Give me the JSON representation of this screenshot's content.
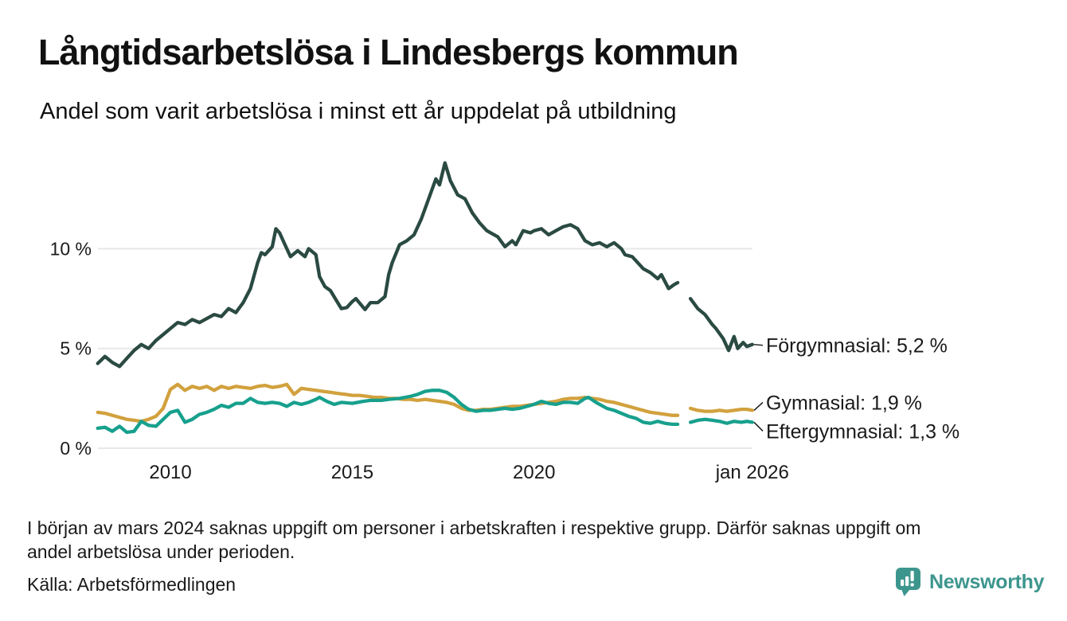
{
  "chart_data": {
    "type": "line",
    "title": "Långtidsarbetslösa i Lindesbergs kommun",
    "subtitle": "Andel som varit arbetslösa i minst ett år uppdelat på utbildning",
    "unit": "%",
    "x_range": [
      2008,
      2026.05
    ],
    "ylim": [
      0,
      14.5
    ],
    "grid": "horizontal",
    "legend_position": "end-of-line-labels-right",
    "y_ticks": [
      {
        "value": 0,
        "label": "0 %"
      },
      {
        "value": 5,
        "label": "5 %"
      },
      {
        "value": 10,
        "label": "10 %"
      }
    ],
    "x_ticks": [
      {
        "year": 2010,
        "label": "2010"
      },
      {
        "year": 2015,
        "label": "2015"
      },
      {
        "year": 2020,
        "label": "2020"
      },
      {
        "year": 2026,
        "label": "jan 2026"
      }
    ],
    "colors": {
      "forgymnasial": "#2a4a42",
      "gymnasial": "#d2a13d",
      "eftergymnasial": "#17a08d",
      "grid": "#e8e8e8",
      "text": "#1a1a1a"
    },
    "series": [
      {
        "name": "Förgymnasial",
        "color": "#2a4a42",
        "end_label": "Förgymnasial: 5,2 %",
        "end_value": "5,2 %",
        "points": [
          [
            2008.0,
            4.25
          ],
          [
            2008.2,
            4.6
          ],
          [
            2008.4,
            4.3
          ],
          [
            2008.6,
            4.1
          ],
          [
            2008.8,
            4.5
          ],
          [
            2009.0,
            4.9
          ],
          [
            2009.2,
            5.2
          ],
          [
            2009.4,
            5.0
          ],
          [
            2009.6,
            5.4
          ],
          [
            2009.8,
            5.7
          ],
          [
            2010.0,
            6.0
          ],
          [
            2010.2,
            6.3
          ],
          [
            2010.4,
            6.2
          ],
          [
            2010.6,
            6.45
          ],
          [
            2010.8,
            6.3
          ],
          [
            2011.0,
            6.5
          ],
          [
            2011.2,
            6.7
          ],
          [
            2011.4,
            6.6
          ],
          [
            2011.6,
            7.0
          ],
          [
            2011.8,
            6.8
          ],
          [
            2012.0,
            7.3
          ],
          [
            2012.2,
            8.0
          ],
          [
            2012.4,
            9.3
          ],
          [
            2012.5,
            9.8
          ],
          [
            2012.6,
            9.7
          ],
          [
            2012.8,
            10.1
          ],
          [
            2012.9,
            11.0
          ],
          [
            2013.0,
            10.8
          ],
          [
            2013.1,
            10.4
          ],
          [
            2013.3,
            9.6
          ],
          [
            2013.5,
            9.9
          ],
          [
            2013.7,
            9.6
          ],
          [
            2013.8,
            10.0
          ],
          [
            2014.0,
            9.7
          ],
          [
            2014.1,
            8.6
          ],
          [
            2014.25,
            8.1
          ],
          [
            2014.4,
            7.9
          ],
          [
            2014.6,
            7.3
          ],
          [
            2014.7,
            7.0
          ],
          [
            2014.85,
            7.05
          ],
          [
            2015.0,
            7.35
          ],
          [
            2015.1,
            7.5
          ],
          [
            2015.35,
            6.95
          ],
          [
            2015.5,
            7.3
          ],
          [
            2015.7,
            7.3
          ],
          [
            2015.9,
            7.6
          ],
          [
            2016.0,
            8.7
          ],
          [
            2016.1,
            9.3
          ],
          [
            2016.3,
            10.2
          ],
          [
            2016.5,
            10.4
          ],
          [
            2016.7,
            10.7
          ],
          [
            2016.9,
            11.5
          ],
          [
            2017.1,
            12.5
          ],
          [
            2017.3,
            13.5
          ],
          [
            2017.4,
            13.2
          ],
          [
            2017.55,
            14.3
          ],
          [
            2017.7,
            13.4
          ],
          [
            2017.9,
            12.7
          ],
          [
            2018.1,
            12.5
          ],
          [
            2018.3,
            11.8
          ],
          [
            2018.5,
            11.3
          ],
          [
            2018.7,
            10.9
          ],
          [
            2018.9,
            10.7
          ],
          [
            2019.0,
            10.6
          ],
          [
            2019.2,
            10.1
          ],
          [
            2019.4,
            10.4
          ],
          [
            2019.5,
            10.2
          ],
          [
            2019.7,
            10.9
          ],
          [
            2019.9,
            10.8
          ],
          [
            2020.0,
            10.9
          ],
          [
            2020.2,
            11.0
          ],
          [
            2020.4,
            10.7
          ],
          [
            2020.6,
            10.9
          ],
          [
            2020.8,
            11.1
          ],
          [
            2021.0,
            11.2
          ],
          [
            2021.2,
            11.0
          ],
          [
            2021.4,
            10.4
          ],
          [
            2021.6,
            10.2
          ],
          [
            2021.8,
            10.3
          ],
          [
            2022.0,
            10.1
          ],
          [
            2022.2,
            10.3
          ],
          [
            2022.4,
            10.0
          ],
          [
            2022.5,
            9.7
          ],
          [
            2022.7,
            9.6
          ],
          [
            2022.9,
            9.2
          ],
          [
            2023.0,
            9.0
          ],
          [
            2023.2,
            8.8
          ],
          [
            2023.4,
            8.5
          ],
          [
            2023.5,
            8.7
          ],
          [
            2023.7,
            8.0
          ],
          [
            2023.85,
            8.2
          ],
          [
            2023.95,
            8.3
          ],
          [
            2024.1,
            null
          ],
          [
            2024.3,
            7.5
          ],
          [
            2024.5,
            7.0
          ],
          [
            2024.7,
            6.7
          ],
          [
            2024.9,
            6.2
          ],
          [
            2025.0,
            6.0
          ],
          [
            2025.2,
            5.5
          ],
          [
            2025.35,
            4.9
          ],
          [
            2025.5,
            5.6
          ],
          [
            2025.6,
            5.0
          ],
          [
            2025.75,
            5.3
          ],
          [
            2025.85,
            5.1
          ],
          [
            2026.0,
            5.2
          ]
        ]
      },
      {
        "name": "Gymnasial",
        "color": "#d2a13d",
        "end_label": "Gymnasial: 1,9 %",
        "end_value": "1,9 %",
        "points": [
          [
            2008.0,
            1.8
          ],
          [
            2008.2,
            1.75
          ],
          [
            2008.4,
            1.65
          ],
          [
            2008.6,
            1.55
          ],
          [
            2008.8,
            1.45
          ],
          [
            2009.0,
            1.4
          ],
          [
            2009.2,
            1.35
          ],
          [
            2009.4,
            1.45
          ],
          [
            2009.6,
            1.6
          ],
          [
            2009.8,
            2.0
          ],
          [
            2010.0,
            2.95
          ],
          [
            2010.2,
            3.2
          ],
          [
            2010.4,
            2.9
          ],
          [
            2010.6,
            3.1
          ],
          [
            2010.8,
            3.0
          ],
          [
            2011.0,
            3.1
          ],
          [
            2011.2,
            2.9
          ],
          [
            2011.4,
            3.1
          ],
          [
            2011.6,
            3.0
          ],
          [
            2011.8,
            3.1
          ],
          [
            2012.0,
            3.05
          ],
          [
            2012.2,
            3.0
          ],
          [
            2012.4,
            3.1
          ],
          [
            2012.6,
            3.15
          ],
          [
            2012.8,
            3.05
          ],
          [
            2013.0,
            3.1
          ],
          [
            2013.2,
            3.2
          ],
          [
            2013.4,
            2.7
          ],
          [
            2013.6,
            3.0
          ],
          [
            2013.8,
            2.95
          ],
          [
            2014.0,
            2.9
          ],
          [
            2014.2,
            2.85
          ],
          [
            2014.4,
            2.8
          ],
          [
            2014.6,
            2.75
          ],
          [
            2014.8,
            2.7
          ],
          [
            2015.0,
            2.65
          ],
          [
            2015.2,
            2.65
          ],
          [
            2015.4,
            2.6
          ],
          [
            2015.6,
            2.55
          ],
          [
            2015.8,
            2.55
          ],
          [
            2016.0,
            2.5
          ],
          [
            2016.2,
            2.5
          ],
          [
            2016.4,
            2.45
          ],
          [
            2016.6,
            2.45
          ],
          [
            2016.8,
            2.4
          ],
          [
            2017.0,
            2.45
          ],
          [
            2017.2,
            2.4
          ],
          [
            2017.4,
            2.35
          ],
          [
            2017.6,
            2.3
          ],
          [
            2017.8,
            2.2
          ],
          [
            2018.0,
            2.0
          ],
          [
            2018.2,
            1.9
          ],
          [
            2018.4,
            1.9
          ],
          [
            2018.6,
            1.95
          ],
          [
            2018.8,
            1.95
          ],
          [
            2019.0,
            2.0
          ],
          [
            2019.2,
            2.05
          ],
          [
            2019.4,
            2.1
          ],
          [
            2019.6,
            2.1
          ],
          [
            2019.8,
            2.15
          ],
          [
            2020.0,
            2.2
          ],
          [
            2020.2,
            2.25
          ],
          [
            2020.4,
            2.3
          ],
          [
            2020.6,
            2.35
          ],
          [
            2020.8,
            2.45
          ],
          [
            2021.0,
            2.5
          ],
          [
            2021.2,
            2.5
          ],
          [
            2021.4,
            2.55
          ],
          [
            2021.6,
            2.5
          ],
          [
            2021.8,
            2.45
          ],
          [
            2022.0,
            2.35
          ],
          [
            2022.2,
            2.3
          ],
          [
            2022.4,
            2.2
          ],
          [
            2022.6,
            2.1
          ],
          [
            2022.8,
            2.0
          ],
          [
            2023.0,
            1.9
          ],
          [
            2023.2,
            1.8
          ],
          [
            2023.4,
            1.75
          ],
          [
            2023.6,
            1.7
          ],
          [
            2023.8,
            1.65
          ],
          [
            2023.95,
            1.65
          ],
          [
            2024.1,
            null
          ],
          [
            2024.3,
            2.0
          ],
          [
            2024.5,
            1.9
          ],
          [
            2024.7,
            1.85
          ],
          [
            2024.9,
            1.85
          ],
          [
            2025.1,
            1.9
          ],
          [
            2025.3,
            1.85
          ],
          [
            2025.5,
            1.9
          ],
          [
            2025.7,
            1.95
          ],
          [
            2025.85,
            1.95
          ],
          [
            2026.0,
            1.9
          ]
        ]
      },
      {
        "name": "Eftergymnasial",
        "color": "#17a08d",
        "end_label": "Eftergymnasial: 1,3 %",
        "end_value": "1,3 %",
        "points": [
          [
            2008.0,
            1.0
          ],
          [
            2008.2,
            1.05
          ],
          [
            2008.4,
            0.85
          ],
          [
            2008.6,
            1.1
          ],
          [
            2008.8,
            0.8
          ],
          [
            2009.0,
            0.85
          ],
          [
            2009.2,
            1.35
          ],
          [
            2009.4,
            1.15
          ],
          [
            2009.6,
            1.1
          ],
          [
            2009.8,
            1.45
          ],
          [
            2010.0,
            1.8
          ],
          [
            2010.2,
            1.9
          ],
          [
            2010.4,
            1.3
          ],
          [
            2010.6,
            1.45
          ],
          [
            2010.8,
            1.7
          ],
          [
            2011.0,
            1.8
          ],
          [
            2011.2,
            1.95
          ],
          [
            2011.4,
            2.15
          ],
          [
            2011.6,
            2.05
          ],
          [
            2011.8,
            2.25
          ],
          [
            2012.0,
            2.25
          ],
          [
            2012.2,
            2.5
          ],
          [
            2012.4,
            2.3
          ],
          [
            2012.6,
            2.25
          ],
          [
            2012.8,
            2.3
          ],
          [
            2013.0,
            2.25
          ],
          [
            2013.2,
            2.1
          ],
          [
            2013.4,
            2.3
          ],
          [
            2013.6,
            2.2
          ],
          [
            2013.8,
            2.3
          ],
          [
            2014.0,
            2.45
          ],
          [
            2014.1,
            2.55
          ],
          [
            2014.3,
            2.35
          ],
          [
            2014.5,
            2.2
          ],
          [
            2014.7,
            2.3
          ],
          [
            2015.0,
            2.25
          ],
          [
            2015.3,
            2.35
          ],
          [
            2015.5,
            2.4
          ],
          [
            2015.8,
            2.4
          ],
          [
            2016.0,
            2.45
          ],
          [
            2016.3,
            2.5
          ],
          [
            2016.6,
            2.6
          ],
          [
            2016.8,
            2.7
          ],
          [
            2017.0,
            2.85
          ],
          [
            2017.2,
            2.9
          ],
          [
            2017.4,
            2.9
          ],
          [
            2017.6,
            2.8
          ],
          [
            2017.8,
            2.55
          ],
          [
            2018.0,
            2.2
          ],
          [
            2018.2,
            1.95
          ],
          [
            2018.4,
            1.85
          ],
          [
            2018.6,
            1.9
          ],
          [
            2018.8,
            1.9
          ],
          [
            2019.0,
            1.95
          ],
          [
            2019.2,
            2.0
          ],
          [
            2019.4,
            1.95
          ],
          [
            2019.6,
            2.0
          ],
          [
            2019.8,
            2.1
          ],
          [
            2020.0,
            2.2
          ],
          [
            2020.2,
            2.35
          ],
          [
            2020.4,
            2.25
          ],
          [
            2020.6,
            2.2
          ],
          [
            2020.8,
            2.3
          ],
          [
            2021.0,
            2.3
          ],
          [
            2021.2,
            2.25
          ],
          [
            2021.4,
            2.5
          ],
          [
            2021.5,
            2.55
          ],
          [
            2021.7,
            2.3
          ],
          [
            2021.9,
            2.1
          ],
          [
            2022.0,
            2.0
          ],
          [
            2022.2,
            1.9
          ],
          [
            2022.4,
            1.75
          ],
          [
            2022.6,
            1.6
          ],
          [
            2022.8,
            1.5
          ],
          [
            2023.0,
            1.3
          ],
          [
            2023.2,
            1.25
          ],
          [
            2023.4,
            1.35
          ],
          [
            2023.6,
            1.25
          ],
          [
            2023.8,
            1.2
          ],
          [
            2023.95,
            1.2
          ],
          [
            2024.1,
            null
          ],
          [
            2024.3,
            1.3
          ],
          [
            2024.5,
            1.4
          ],
          [
            2024.7,
            1.45
          ],
          [
            2024.9,
            1.4
          ],
          [
            2025.1,
            1.35
          ],
          [
            2025.3,
            1.25
          ],
          [
            2025.5,
            1.35
          ],
          [
            2025.7,
            1.3
          ],
          [
            2025.85,
            1.35
          ],
          [
            2026.0,
            1.3
          ]
        ]
      }
    ],
    "data_gap": {
      "from": 2024.0,
      "to": 2024.25,
      "reason_visible_in_footnote": true
    }
  },
  "footer": {
    "note_line1": "I början av mars 2024 saknas uppgift om personer i arbetskraften i respektive grupp. Därför saknas uppgift om",
    "note_line2": "andel arbetslösa under perioden.",
    "source": "Källa: Arbetsförmedlingen"
  },
  "logo": {
    "text": "Newsworthy",
    "color": "#3d968e"
  }
}
